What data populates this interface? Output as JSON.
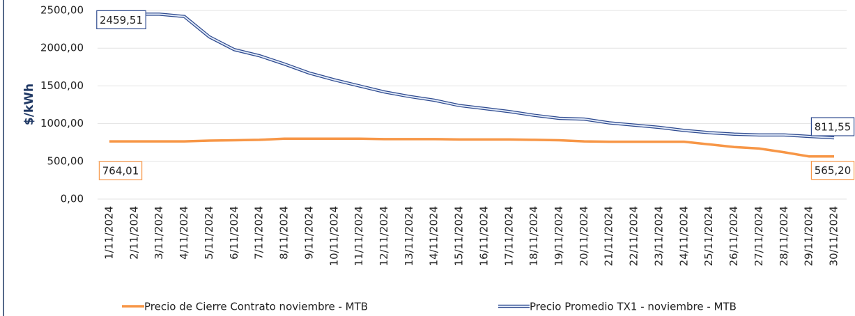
{
  "chart_data": {
    "type": "line",
    "y_label": "$/kWh",
    "categories": [
      "1/11/2024",
      "2/11/2024",
      "3/11/2024",
      "4/11/2024",
      "5/11/2024",
      "6/11/2024",
      "7/11/2024",
      "8/11/2024",
      "9/11/2024",
      "10/11/2024",
      "11/11/2024",
      "12/11/2024",
      "13/11/2024",
      "14/11/2024",
      "15/11/2024",
      "16/11/2024",
      "17/11/2024",
      "18/11/2024",
      "19/11/2024",
      "20/11/2024",
      "21/11/2024",
      "22/11/2024",
      "23/11/2024",
      "24/11/2024",
      "25/11/2024",
      "26/11/2024",
      "27/11/2024",
      "28/11/2024",
      "29/11/2024",
      "30/11/2024"
    ],
    "series": [
      {
        "name": "Precio de Cierre Contrato noviembre - MTB",
        "color": "#f79646",
        "values": [
          764.01,
          764,
          764,
          764,
          775,
          780,
          785,
          800,
          800,
          800,
          800,
          795,
          795,
          795,
          790,
          790,
          790,
          785,
          780,
          765,
          760,
          760,
          760,
          760,
          725,
          690,
          670,
          620,
          565,
          565.2
        ],
        "value_labels": [
          "764,01",
          null,
          null,
          null,
          null,
          null,
          null,
          null,
          null,
          null,
          null,
          null,
          null,
          null,
          null,
          null,
          null,
          null,
          null,
          null,
          null,
          null,
          null,
          null,
          null,
          null,
          null,
          null,
          null,
          "565,20"
        ]
      },
      {
        "name": "Precio Promedio TX1 - noviembre - MTB",
        "color": "#2e4a8f",
        "values": [
          2459.51,
          2450,
          2450,
          2420,
          2150,
          1980,
          1900,
          1790,
          1670,
          1580,
          1500,
          1420,
          1360,
          1310,
          1240,
          1200,
          1160,
          1110,
          1070,
          1060,
          1010,
          980,
          950,
          910,
          880,
          860,
          850,
          850,
          830,
          811.55
        ],
        "value_labels": [
          "2459,51",
          null,
          null,
          null,
          null,
          null,
          null,
          null,
          null,
          null,
          null,
          null,
          null,
          null,
          null,
          null,
          null,
          null,
          null,
          null,
          null,
          null,
          null,
          null,
          null,
          null,
          null,
          null,
          null,
          "811,55"
        ]
      }
    ],
    "ylim": [
      0,
      2500
    ],
    "yticks": [
      {
        "value": 0,
        "label": "0,00"
      },
      {
        "value": 500,
        "label": "500,00"
      },
      {
        "value": 1000,
        "label": "1000,00"
      },
      {
        "value": 1500,
        "label": "1500,00"
      },
      {
        "value": 2000,
        "label": "2000,00"
      },
      {
        "value": 2500,
        "label": "2500,00"
      }
    ],
    "grid": true
  }
}
